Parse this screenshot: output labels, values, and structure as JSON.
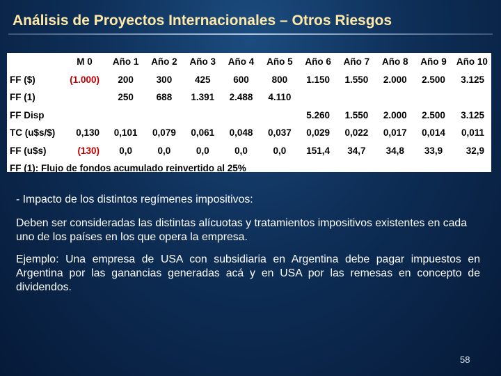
{
  "title": "Análisis de Proyectos Internacionales – Otros Riesgos",
  "table": {
    "headers": [
      "",
      "M 0",
      "Año 1",
      "Año 2",
      "Año 3",
      "Año 4",
      "Año 5",
      "Año 6",
      "Año 7",
      "Año 8",
      "Año 9",
      "Año 10"
    ],
    "rows": [
      {
        "label": "FF ($)",
        "cells": [
          "(1.000)",
          "200",
          "300",
          "425",
          "600",
          "800",
          "1.150",
          "1.550",
          "2.000",
          "2.500",
          "3.125"
        ]
      },
      {
        "label": "FF (1)",
        "cells": [
          "",
          "250",
          "688",
          "1.391",
          "2.488",
          "4.110",
          "",
          "",
          "",
          "",
          ""
        ]
      },
      {
        "label": "FF Disp",
        "cells": [
          "",
          "",
          "",
          "",
          "",
          "",
          "5.260",
          "1.550",
          "2.000",
          "2.500",
          "3.125"
        ]
      },
      {
        "label": "TC (u$s/$)",
        "cells": [
          "0,130",
          "0,101",
          "0,079",
          "0,061",
          "0,048",
          "0,037",
          "0,029",
          "0,022",
          "0,017",
          "0,014",
          "0,011"
        ]
      },
      {
        "label": "FF (u$s)",
        "cells": [
          "(130)",
          "0,0",
          "0,0",
          "0,0",
          "0,0",
          "0,0",
          "151,4",
          "34,7",
          "34,8",
          "33,9",
          "32,9"
        ]
      }
    ],
    "note": "FF (1): Flujo de fondos acumulado reinvertido al 25%",
    "negative_color": "#c00000"
  },
  "paragraphs": {
    "p1": "- Impacto de los distintos regímenes impositivos:",
    "p2": "Deben ser consideradas las distintas alícuotas y tratamientos impositivos existentes en cada uno de los países en los que opera la empresa.",
    "p3": "Ejemplo: Una empresa de USA con subsidiaria en Argentina debe pagar impuestos en Argentina por las ganancias generadas acá y en USA por las remesas en concepto de dividendos."
  },
  "page_number": "58"
}
